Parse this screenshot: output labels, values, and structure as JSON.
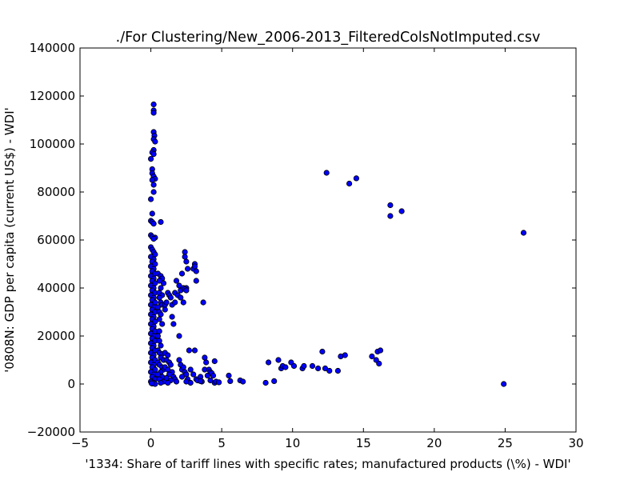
{
  "chart_data": {
    "type": "scatter",
    "title": "./For Clustering/New_2006-2013_FilteredColsNotImputed.csv",
    "xlabel": "'1334: Share of tariff lines with specific rates; manufactured products  (\\%) - WDI'",
    "ylabel": "'0808N: GDP per capita  (current US$) - WDI'",
    "xlim": [
      -5,
      30
    ],
    "ylim": [
      -20000,
      140000
    ],
    "xticks": [
      -5,
      0,
      5,
      10,
      15,
      20,
      25,
      30
    ],
    "yticks": [
      -20000,
      0,
      20000,
      40000,
      60000,
      80000,
      100000,
      120000,
      140000
    ],
    "xtick_labels": [
      "−5",
      "0",
      "5",
      "10",
      "15",
      "20",
      "25",
      "30"
    ],
    "ytick_labels": [
      "−20000",
      "0",
      "20000",
      "40000",
      "60000",
      "80000",
      "100000",
      "120000",
      "140000"
    ],
    "grid": false,
    "marker_color": "#0000ff",
    "marker_edge": "#000000",
    "points": [
      [
        0.2,
        116500
      ],
      [
        0.2,
        114000
      ],
      [
        0.2,
        113000
      ],
      [
        0.2,
        105000
      ],
      [
        0.25,
        103500
      ],
      [
        0.2,
        102000
      ],
      [
        0.3,
        101000
      ],
      [
        0.2,
        97500
      ],
      [
        0.1,
        96500
      ],
      [
        0.2,
        95800
      ],
      [
        0.0,
        93800
      ],
      [
        0.1,
        89500
      ],
      [
        0.1,
        87800
      ],
      [
        0.2,
        86500
      ],
      [
        0.3,
        85500
      ],
      [
        0.1,
        85000
      ],
      [
        0.2,
        83000
      ],
      [
        0.2,
        80000
      ],
      [
        0.0,
        77000
      ],
      [
        0.1,
        71000
      ],
      [
        0.0,
        68000
      ],
      [
        0.1,
        67500
      ],
      [
        0.2,
        66800
      ],
      [
        0.7,
        67500
      ],
      [
        0.0,
        62000
      ],
      [
        0.1,
        61300
      ],
      [
        0.3,
        61000
      ],
      [
        0.2,
        60500
      ],
      [
        0.0,
        57000
      ],
      [
        0.1,
        56000
      ],
      [
        0.2,
        55000
      ],
      [
        0.3,
        54000
      ],
      [
        0.0,
        53000
      ],
      [
        0.2,
        52000
      ],
      [
        0.1,
        51000
      ],
      [
        0.3,
        50000
      ],
      [
        0.0,
        49000
      ],
      [
        0.2,
        48000
      ],
      [
        0.1,
        47000
      ],
      [
        0.3,
        46000
      ],
      [
        0.0,
        45000
      ],
      [
        0.2,
        44000
      ],
      [
        0.1,
        43000
      ],
      [
        0.3,
        42000
      ],
      [
        0.0,
        41000
      ],
      [
        0.2,
        40000
      ],
      [
        0.1,
        39000
      ],
      [
        0.3,
        38000
      ],
      [
        0.0,
        37000
      ],
      [
        0.2,
        36000
      ],
      [
        0.1,
        35000
      ],
      [
        0.3,
        34000
      ],
      [
        0.0,
        33000
      ],
      [
        0.2,
        32000
      ],
      [
        0.1,
        31000
      ],
      [
        0.3,
        30000
      ],
      [
        0.0,
        29000
      ],
      [
        0.2,
        28000
      ],
      [
        0.1,
        27000
      ],
      [
        0.3,
        26000
      ],
      [
        0.0,
        25000
      ],
      [
        0.2,
        24000
      ],
      [
        0.1,
        23000
      ],
      [
        0.3,
        22000
      ],
      [
        0.0,
        21000
      ],
      [
        0.2,
        20000
      ],
      [
        0.1,
        19000
      ],
      [
        0.3,
        18000
      ],
      [
        0.0,
        17000
      ],
      [
        0.2,
        16000
      ],
      [
        0.1,
        15000
      ],
      [
        0.3,
        14000
      ],
      [
        0.0,
        13000
      ],
      [
        0.2,
        12000
      ],
      [
        0.1,
        11000
      ],
      [
        0.3,
        10000
      ],
      [
        0.0,
        9000
      ],
      [
        0.2,
        8000
      ],
      [
        0.1,
        7000
      ],
      [
        0.3,
        6000
      ],
      [
        0.0,
        5000
      ],
      [
        0.2,
        4000
      ],
      [
        0.1,
        3000
      ],
      [
        0.3,
        2000
      ],
      [
        0.0,
        1000
      ],
      [
        0.2,
        500
      ],
      [
        0.1,
        200
      ],
      [
        0.3,
        0
      ],
      [
        0.05,
        300
      ],
      [
        0.5,
        46000
      ],
      [
        0.7,
        45000
      ],
      [
        0.8,
        44000
      ],
      [
        0.6,
        43000
      ],
      [
        0.9,
        42000
      ],
      [
        0.7,
        40000
      ],
      [
        0.6,
        38000
      ],
      [
        0.8,
        37000
      ],
      [
        0.6,
        36000
      ],
      [
        0.7,
        34000
      ],
      [
        0.8,
        33000
      ],
      [
        0.5,
        32000
      ],
      [
        0.6,
        30000
      ],
      [
        0.7,
        29000
      ],
      [
        0.6,
        27000
      ],
      [
        0.8,
        25000
      ],
      [
        0.6,
        22000
      ],
      [
        0.5,
        20000
      ],
      [
        0.6,
        18000
      ],
      [
        0.7,
        16000
      ],
      [
        0.5,
        14000
      ],
      [
        0.6,
        13000
      ],
      [
        0.8,
        12500
      ],
      [
        0.7,
        11000
      ],
      [
        0.9,
        10000
      ],
      [
        0.5,
        9000
      ],
      [
        0.6,
        8000
      ],
      [
        0.8,
        7000
      ],
      [
        0.9,
        6000
      ],
      [
        0.7,
        5000
      ],
      [
        0.5,
        4000
      ],
      [
        0.8,
        3000
      ],
      [
        0.6,
        2000
      ],
      [
        0.9,
        1000
      ],
      [
        0.7,
        500
      ],
      [
        1.0,
        33000
      ],
      [
        1.1,
        34000
      ],
      [
        1.2,
        38000
      ],
      [
        1.3,
        37000
      ],
      [
        1.0,
        31000
      ],
      [
        1.4,
        36000
      ],
      [
        1.5,
        33000
      ],
      [
        1.5,
        28000
      ],
      [
        1.6,
        25000
      ],
      [
        1.7,
        38000
      ],
      [
        1.7,
        34000
      ],
      [
        1.8,
        43000
      ],
      [
        1.9,
        37000
      ],
      [
        2.0,
        20000
      ],
      [
        2.0,
        41000
      ],
      [
        2.1,
        39000
      ],
      [
        2.2,
        46000
      ],
      [
        2.1,
        36000
      ],
      [
        2.3,
        34000
      ],
      [
        2.3,
        40000
      ],
      [
        2.4,
        55000
      ],
      [
        2.4,
        53000
      ],
      [
        2.5,
        51000
      ],
      [
        2.6,
        48000
      ],
      [
        2.5,
        40000
      ],
      [
        2.4,
        39500
      ],
      [
        2.5,
        39000
      ],
      [
        3.0,
        48000
      ],
      [
        3.1,
        50000
      ],
      [
        3.1,
        49000
      ],
      [
        3.2,
        47000
      ],
      [
        3.2,
        43000
      ],
      [
        3.7,
        34000
      ],
      [
        1.0,
        13000
      ],
      [
        1.2,
        12000
      ],
      [
        1.1,
        10000
      ],
      [
        1.3,
        9000
      ],
      [
        1.4,
        8000
      ],
      [
        1.0,
        7000
      ],
      [
        1.2,
        6000
      ],
      [
        1.5,
        5000
      ],
      [
        1.3,
        4000
      ],
      [
        1.6,
        3000
      ],
      [
        1.1,
        2500
      ],
      [
        1.7,
        2000
      ],
      [
        1.4,
        1500
      ],
      [
        1.8,
        1000
      ],
      [
        1.2,
        500
      ],
      [
        2.0,
        10000
      ],
      [
        2.1,
        8000
      ],
      [
        2.2,
        6000
      ],
      [
        2.3,
        7000
      ],
      [
        2.4,
        5000
      ],
      [
        2.5,
        4000
      ],
      [
        2.2,
        3000
      ],
      [
        2.6,
        2000
      ],
      [
        2.5,
        1000
      ],
      [
        2.7,
        14000
      ],
      [
        2.8,
        6000
      ],
      [
        3.0,
        4000
      ],
      [
        3.1,
        14000
      ],
      [
        3.2,
        2000
      ],
      [
        3.3,
        1500
      ],
      [
        3.5,
        3000
      ],
      [
        3.6,
        1000
      ],
      [
        3.8,
        11000
      ],
      [
        3.9,
        9000
      ],
      [
        3.8,
        6000
      ],
      [
        4.0,
        3500
      ],
      [
        4.1,
        6000
      ],
      [
        4.2,
        5000
      ],
      [
        4.2,
        1500
      ],
      [
        4.3,
        4500
      ],
      [
        4.4,
        3500
      ],
      [
        4.5,
        9500
      ],
      [
        4.5,
        500
      ],
      [
        4.6,
        1000
      ],
      [
        4.8,
        700
      ],
      [
        2.8,
        500
      ],
      [
        3.5,
        1200
      ],
      [
        5.5,
        3500
      ],
      [
        5.6,
        1200
      ],
      [
        6.3,
        1500
      ],
      [
        6.5,
        1000
      ],
      [
        8.1,
        500
      ],
      [
        8.3,
        9000
      ],
      [
        8.7,
        1200
      ],
      [
        9.0,
        10000
      ],
      [
        9.2,
        6500
      ],
      [
        9.3,
        7500
      ],
      [
        9.5,
        7000
      ],
      [
        9.9,
        9000
      ],
      [
        10.1,
        7500
      ],
      [
        10.7,
        6500
      ],
      [
        10.8,
        7500
      ],
      [
        11.4,
        7500
      ],
      [
        11.8,
        6500
      ],
      [
        12.1,
        13500
      ],
      [
        12.3,
        6500
      ],
      [
        12.6,
        5500
      ],
      [
        13.2,
        5500
      ],
      [
        13.4,
        11500
      ],
      [
        13.7,
        12000
      ],
      [
        15.6,
        11500
      ],
      [
        15.9,
        10000
      ],
      [
        16.0,
        13500
      ],
      [
        16.1,
        8500
      ],
      [
        16.2,
        14000
      ],
      [
        12.4,
        88000
      ],
      [
        14.0,
        83500
      ],
      [
        14.5,
        85700
      ],
      [
        16.9,
        74500
      ],
      [
        16.9,
        70000
      ],
      [
        17.7,
        72000
      ],
      [
        24.9,
        0
      ],
      [
        26.3,
        63000
      ]
    ]
  }
}
